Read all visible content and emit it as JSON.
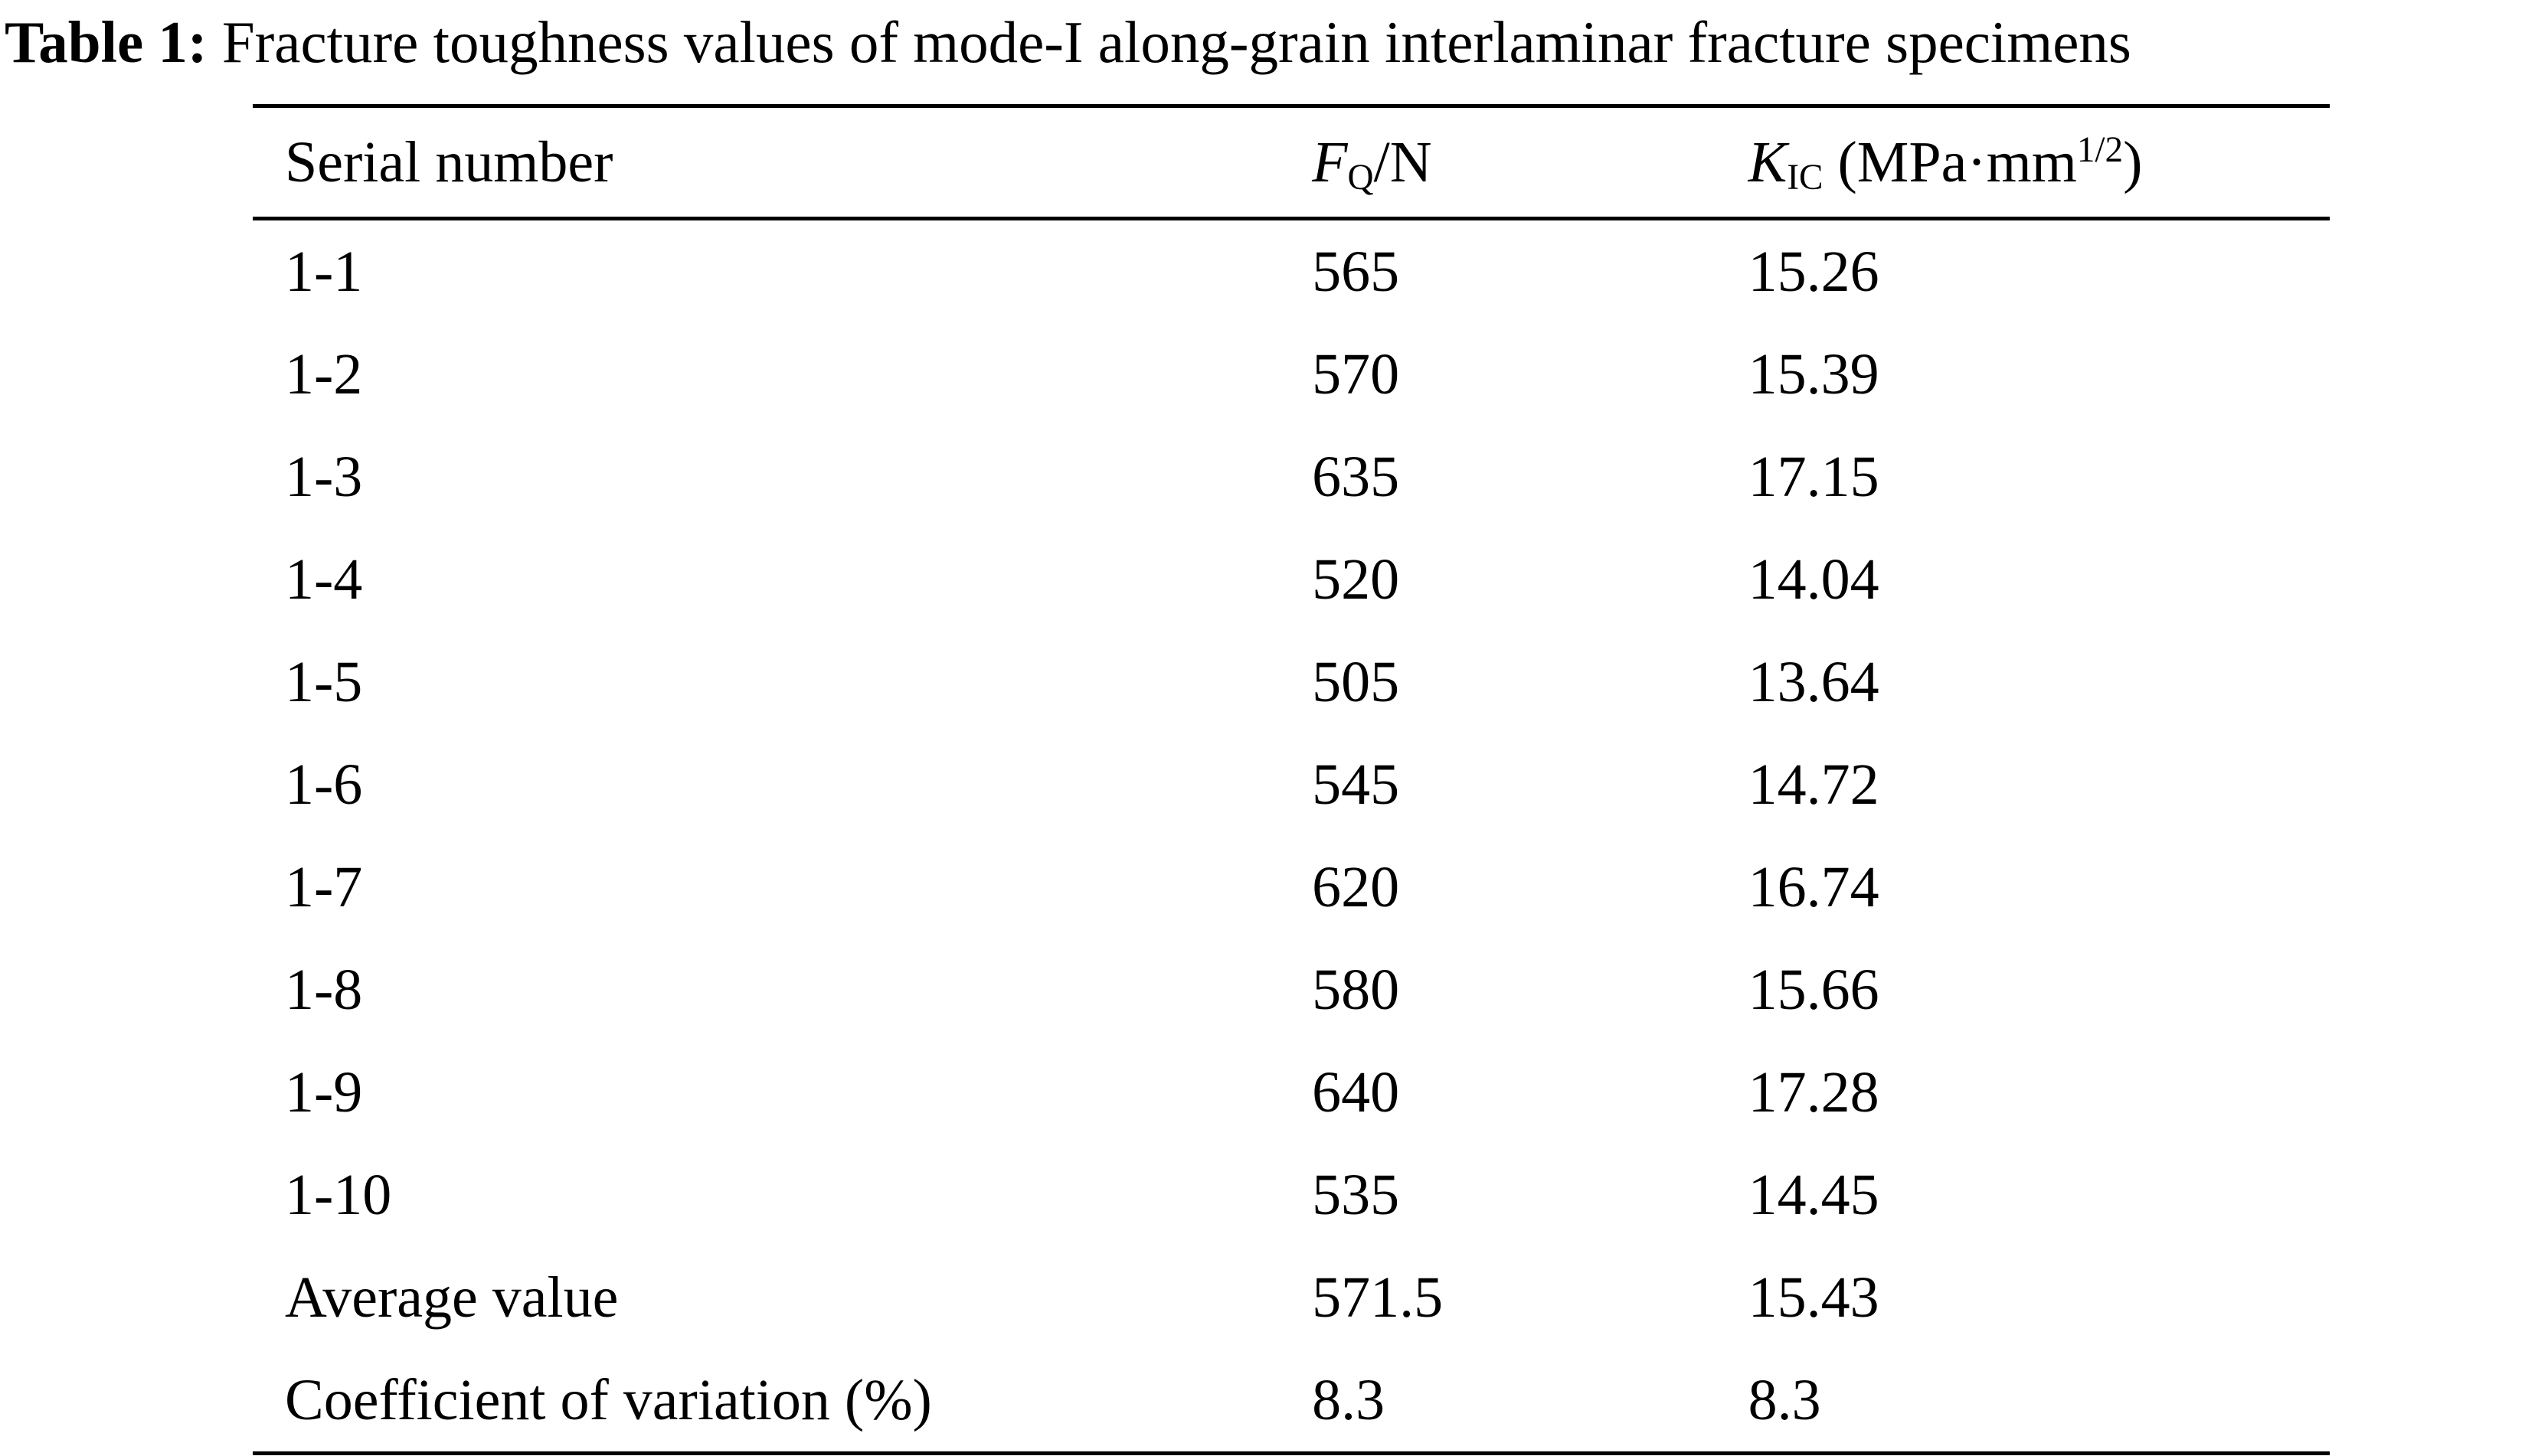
{
  "caption": {
    "label": "Table 1:",
    "text": " Fracture toughness values of mode-I along-grain interlaminar fracture specimens"
  },
  "table": {
    "headers": {
      "col1": "Serial number",
      "col2_base": "F",
      "col2_sub": "Q",
      "col2_rest": "/N",
      "col3_base": "K",
      "col3_sub": "IC",
      "col3_mid": " (MPa·mm",
      "col3_sup": "1/2",
      "col3_end": ")"
    },
    "rows": [
      {
        "serial": "1-1",
        "fq": "565",
        "kic": "15.26"
      },
      {
        "serial": "1-2",
        "fq": "570",
        "kic": "15.39"
      },
      {
        "serial": "1-3",
        "fq": "635",
        "kic": "17.15"
      },
      {
        "serial": "1-4",
        "fq": "520",
        "kic": "14.04"
      },
      {
        "serial": "1-5",
        "fq": "505",
        "kic": "13.64"
      },
      {
        "serial": "1-6",
        "fq": "545",
        "kic": "14.72"
      },
      {
        "serial": "1-7",
        "fq": "620",
        "kic": "16.74"
      },
      {
        "serial": "1-8",
        "fq": "580",
        "kic": "15.66"
      },
      {
        "serial": "1-9",
        "fq": "640",
        "kic": "17.28"
      },
      {
        "serial": "1-10",
        "fq": "535",
        "kic": "14.45"
      },
      {
        "serial": "Average value",
        "fq": "571.5",
        "kic": "15.43"
      },
      {
        "serial": "Coefficient of variation (%)",
        "fq": "8.3",
        "kic": "8.3"
      }
    ]
  }
}
